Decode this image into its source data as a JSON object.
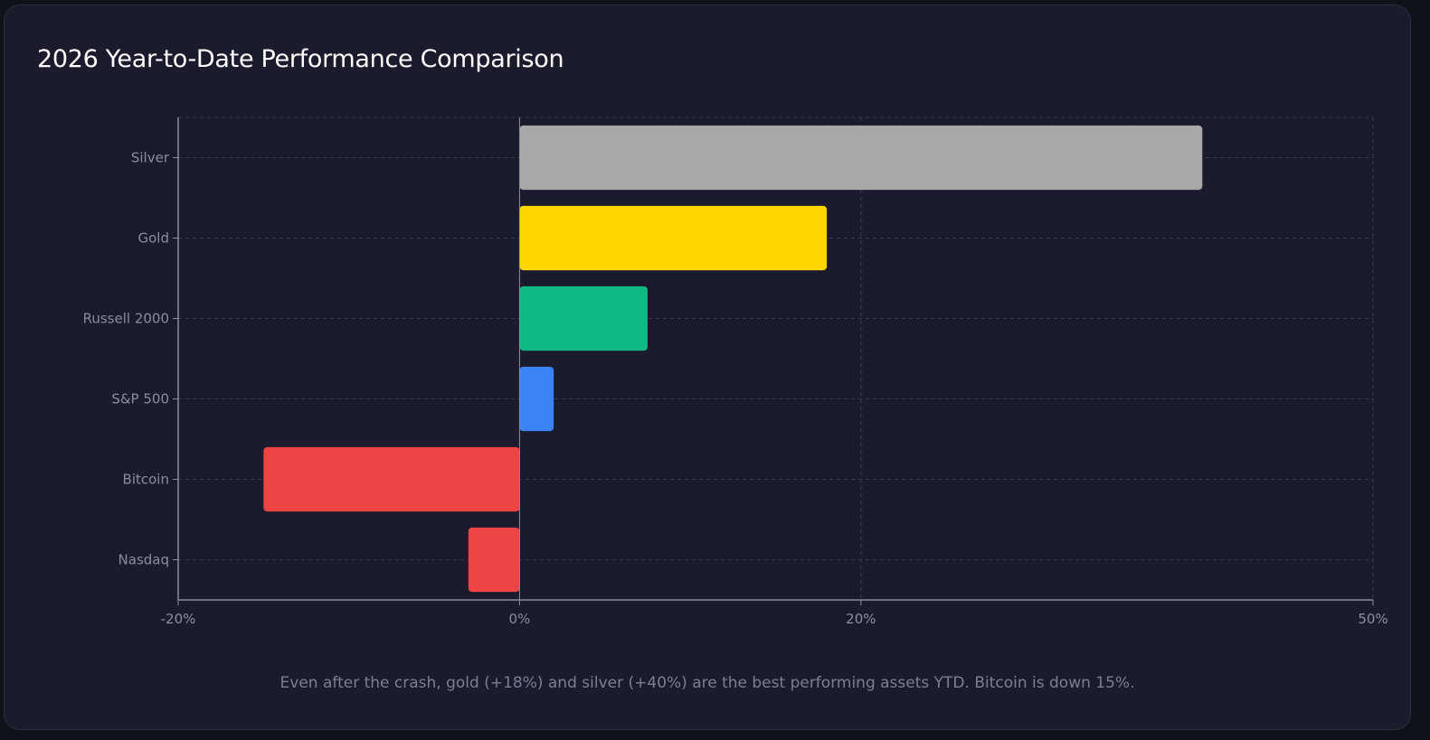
{
  "chart_data": {
    "type": "bar",
    "orientation": "horizontal",
    "title": "2026 Year-to-Date Performance Comparison",
    "categories": [
      "Silver",
      "Gold",
      "Russell 2000",
      "S&P 500",
      "Bitcoin",
      "Nasdaq"
    ],
    "values": [
      40,
      18,
      7.5,
      2,
      -15,
      -3
    ],
    "colors": [
      "#a8a8a8",
      "#ffd700",
      "#10b981",
      "#3b82f6",
      "#ef4444",
      "#ef4444"
    ],
    "xlabel": "",
    "ylabel": "",
    "xlim": [
      -20,
      50
    ],
    "xticks": [
      -20,
      0,
      20,
      50
    ],
    "xtick_labels": [
      "-20%",
      "0%",
      "20%",
      "50%"
    ],
    "grid": true,
    "legend": "none"
  },
  "caption": "Even after the crash, gold (+18%) and silver (+40%) are the best performing assets YTD. Bitcoin is down 15%.",
  "theme": {
    "background": "#1b1b2d",
    "axis": "#8a8da3",
    "grid": "#3a3b50"
  }
}
